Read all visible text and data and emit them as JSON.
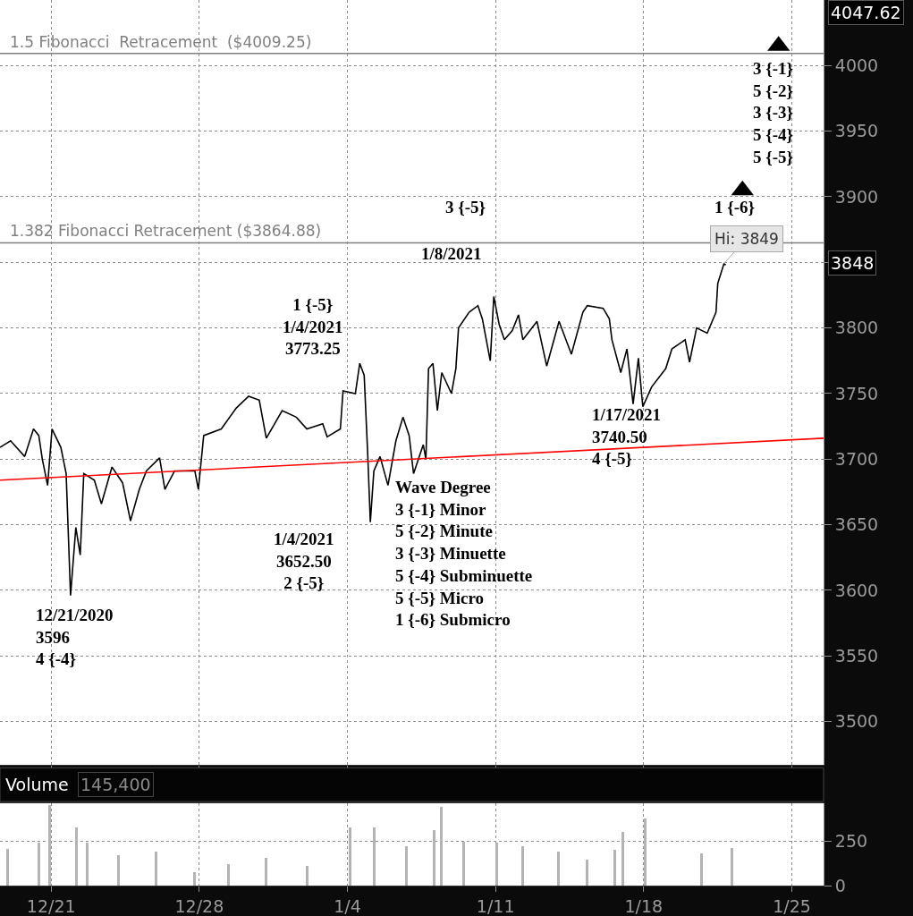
{
  "chart_data": [
    {
      "type": "line",
      "xlim": [
        "2020-12-18T14:00",
        "2021-01-26T12:00"
      ],
      "xticks": [
        {
          "value": "2020-12-21",
          "label": null
        },
        {
          "value": "2020-12-28",
          "label": null
        },
        {
          "value": "2021-01-04",
          "label": null
        },
        {
          "value": "2021-01-11",
          "label": null
        },
        {
          "value": "2021-01-18",
          "label": null
        },
        {
          "value": "2021-01-25",
          "label": null
        }
      ],
      "ylim": [
        3467,
        4050
      ],
      "yticks": [
        3500,
        3550,
        3600,
        3650,
        3700,
        3750,
        3800,
        {
          "value": 3850,
          "label": null
        },
        3900,
        3950,
        4000
      ],
      "tick_labels": "y",
      "grid": true,
      "ref_lines": [
        {
          "axis": "y",
          "value": 4009.25,
          "label": "1.5 Fibonacci  Retracement  ($4009.25)",
          "color": "#808080"
        },
        {
          "axis": "y",
          "value": 3864.88,
          "label": "1.382 Fibonacci Retracement ($3864.88)",
          "color": "#808080"
        }
      ],
      "series": [
        {
          "color": "#000000",
          "x": [
            "2020-12-18T14:00",
            "2020-12-19T02:00",
            "2020-12-19T18:00",
            "2020-12-20T04:00",
            "2020-12-20T10:00",
            "2020-12-20T14:00",
            "2020-12-20T20:00",
            "2020-12-21T01:00",
            "2020-12-21T11:00",
            "2020-12-21T17:00",
            "2020-12-21T22:00",
            "2020-12-22T04:00",
            "2020-12-22T09:00",
            "2020-12-22T13:00",
            "2020-12-23T01:00",
            "2020-12-23T09:00",
            "2020-12-23T21:00",
            "2020-12-24T09:00",
            "2020-12-24T18:00",
            "2020-12-25T04:00",
            "2020-12-25T12:00",
            "2020-12-26T03:00",
            "2020-12-26T09:00",
            "2020-12-26T20:00",
            "2020-12-27T19:00",
            "2020-12-27T23:00",
            "2020-12-28T05:00",
            "2020-12-29T01:00",
            "2020-12-29T18:00",
            "2020-12-30T08:00",
            "2020-12-30T20:00",
            "2020-12-31T04:00",
            "2020-12-31T22:00",
            "2021-01-01T14:00",
            "2021-01-02T02:00",
            "2021-01-02T20:00",
            "2021-01-03T01:00",
            "2021-01-03T16:00",
            "2021-01-03T19:00",
            "2021-01-04T09:00",
            "2021-01-04T14:00",
            "2021-01-04T19:00",
            "2021-01-04T23:00",
            "2021-01-05T02:00",
            "2021-01-05T06:00",
            "2021-01-05T13:00",
            "2021-01-05T22:00",
            "2021-01-06T07:00",
            "2021-01-06T15:00",
            "2021-01-06T22:00",
            "2021-01-07T03:00",
            "2021-01-07T14:00",
            "2021-01-07T17:00",
            "2021-01-07T20:00",
            "2021-01-08T01:00",
            "2021-01-08T06:00",
            "2021-01-08T11:00",
            "2021-01-08T22:00",
            "2021-01-09T03:00",
            "2021-01-09T06:00",
            "2021-01-09T18:00",
            "2021-01-10T04:00",
            "2021-01-10T09:00",
            "2021-01-10T18:00",
            "2021-01-10T22:00",
            "2021-01-11T04:00",
            "2021-01-11T10:00",
            "2021-01-11T19:00",
            "2021-01-12T02:00",
            "2021-01-12T07:00",
            "2021-01-12T23:00",
            "2021-01-13T10:00",
            "2021-01-14T00:00",
            "2021-01-14T14:00",
            "2021-01-15T03:00",
            "2021-01-15T08:00",
            "2021-01-16T02:00",
            "2021-01-16T09:00",
            "2021-01-16T12:00",
            "2021-01-16T22:00",
            "2021-01-17T05:00",
            "2021-01-17T12:00",
            "2021-01-17T18:00",
            "2021-01-17T23:00",
            "2021-01-18T09:00",
            "2021-01-19T01:00",
            "2021-01-19T08:00",
            "2021-01-19T23:00",
            "2021-01-20T04:00",
            "2021-01-20T12:00",
            "2021-01-21T00:00",
            "2021-01-21T10:00",
            "2021-01-21T12:00",
            "2021-01-21T19:00",
            "2021-01-21T21:00"
          ],
          "values": [
            3709,
            3714,
            3702,
            3723,
            3718,
            3700,
            3680,
            3723,
            3709,
            3689,
            3596,
            3648,
            3627,
            3689,
            3684,
            3666,
            3694,
            3682,
            3653,
            3677,
            3691,
            3701,
            3677,
            3691,
            3691,
            3677,
            3718,
            3723,
            3739,
            3748,
            3745,
            3716,
            3737,
            3732,
            3723,
            3727,
            3717,
            3723,
            3752,
            3750,
            3773,
            3764,
            3704,
            3652,
            3691,
            3702,
            3680,
            3714,
            3732,
            3718,
            3689,
            3711,
            3700,
            3769,
            3773,
            3737,
            3766,
            3750,
            3769,
            3800,
            3812,
            3817,
            3807,
            3775,
            3824,
            3803,
            3791,
            3798,
            3810,
            3791,
            3805,
            3771,
            3805,
            3780,
            3812,
            3817,
            3815,
            3807,
            3791,
            3766,
            3784,
            3742,
            3777,
            3740,
            3755,
            3769,
            3784,
            3791,
            3774,
            3800,
            3796,
            3812,
            3834,
            3849,
            3848
          ]
        },
        {
          "type": "line",
          "color": "#ff0000",
          "x": [
            "2020-12-18T14:00",
            "2021-01-26T12:00"
          ],
          "values": [
            3684,
            3716
          ]
        },
        {
          "type": "scatter",
          "marker": "triangle",
          "color": "#000000",
          "x": [
            "2021-01-24T09:00",
            "2021-01-22T16:00"
          ],
          "values": [
            4015,
            3905
          ]
        }
      ],
      "annotations": [
        "12/21/2020\n3596\n4 {-4}",
        "1 {-5}\n1/4/2021\n3773.25",
        "1/4/2021\n3652.50\n2 {-5}",
        "3 {-5}",
        "1/8/2021",
        "1/17/2021\n3740.50\n4 {-5}",
        "Wave Degree\n3 {-1} Minor\n5 {-2} Minute\n3 {-3} Minuette\n5 {-4} Subminuette\n5 {-5} Micro\n1 {-6} Submicro",
        "3 {-1}\n5 {-2}\n3 {-3}\n5 {-4}\n5 {-5}",
        "1 {-6}",
        {
          "text": "Hi: 3849",
          "x": "2021-01-21T19:00",
          "y": 3849
        },
        "4047.62",
        "3848"
      ]
    },
    {
      "type": "bar",
      "title": "Volume",
      "color": "#b4b4b4",
      "x": [
        "2020-12-18T23:00",
        "2020-12-20T10:00",
        "2020-12-20T22:00",
        "2020-12-22T05:00",
        "2020-12-22T17:00",
        "2020-12-24T04:00",
        "2020-12-25T23:00",
        "2020-12-27T19:00",
        "2020-12-29T09:00",
        "2020-12-31T04:00",
        "2021-01-02T02:00",
        "2021-01-04T03:00",
        "2021-01-05T06:00",
        "2021-01-06T19:00",
        "2021-01-08T02:00",
        "2021-01-08T10:00",
        "2021-01-09T12:00",
        "2021-01-11T01:00",
        "2021-01-12T07:00",
        "2021-01-13T23:00",
        "2021-01-15T08:00",
        "2021-01-16T15:00",
        "2021-01-17T00:00",
        "2021-01-18T02:00",
        "2021-01-20T18:00",
        "2021-01-22T04:00"
      ],
      "values": [
        205,
        240,
        450,
        325,
        240,
        170,
        190,
        75,
        120,
        155,
        110,
        325,
        325,
        220,
        310,
        440,
        245,
        240,
        220,
        190,
        145,
        200,
        300,
        375,
        180,
        210
      ],
      "xlim": [
        "2020-12-18T14:00",
        "2021-01-26T12:00"
      ],
      "xticks": [
        {
          "value": "2020-12-21",
          "label": "12/21"
        },
        {
          "value": "2020-12-28",
          "label": "12/28"
        },
        {
          "value": "2021-01-04",
          "label": "1/4"
        },
        {
          "value": "2021-01-11",
          "label": "1/11"
        },
        {
          "value": "2021-01-18",
          "label": "1/18"
        },
        {
          "value": "2021-01-25",
          "label": "1/25"
        }
      ],
      "ylim": [
        0,
        460
      ],
      "yticks": [
        0,
        250
      ],
      "grid": true,
      "annotations": [
        "145,400"
      ]
    }
  ]
}
